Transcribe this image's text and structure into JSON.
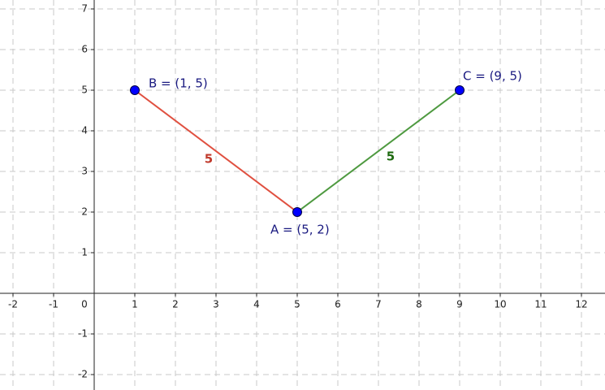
{
  "chart_data": {
    "type": "geometry",
    "xlim": [
      -2.32,
      12.58
    ],
    "ylim": [
      -2.38,
      7.22
    ],
    "xticks": [
      -2,
      -1,
      0,
      1,
      2,
      3,
      4,
      5,
      6,
      7,
      8,
      9,
      10,
      11,
      12
    ],
    "yticks": [
      -2,
      -1,
      1,
      2,
      3,
      4,
      5,
      6,
      7
    ],
    "grid": true,
    "points": {
      "color": "#0000ff",
      "labels": [
        "A = (5, 2)",
        "B = (1, 5)",
        "C = (9, 5)"
      ],
      "x": [
        5,
        1,
        9
      ],
      "y": [
        2,
        5,
        5
      ]
    },
    "segments": [
      {
        "x": [
          1,
          5
        ],
        "y": [
          5,
          2
        ],
        "length": 5,
        "color": "#e05040",
        "label_color": "#c0392b"
      },
      {
        "x": [
          5,
          9
        ],
        "y": [
          2,
          5
        ],
        "length": 5,
        "color": "#4e9a40",
        "label_color": "#1e6a10"
      }
    ]
  }
}
